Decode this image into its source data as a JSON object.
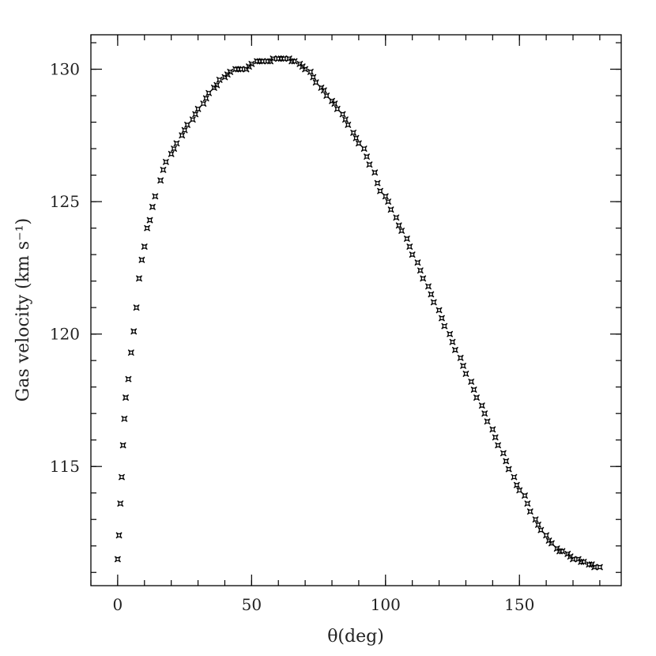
{
  "chart_data": {
    "type": "scatter",
    "title": "",
    "xlabel": "θ(deg)",
    "ylabel": "Gas velocity (km s⁻¹)",
    "xlim": [
      -10,
      188
    ],
    "ylim": [
      110.5,
      131.3
    ],
    "xticks": [
      0,
      50,
      100,
      150
    ],
    "yticks": [
      115,
      120,
      125,
      130
    ],
    "x_minor_step": 10,
    "y_minor_step": 1,
    "grid": false,
    "legend": "none",
    "marker": "star",
    "series": [
      {
        "x": [
          0,
          0.5,
          1,
          1.5,
          2,
          2.5,
          3,
          4,
          5,
          6,
          7,
          8,
          9,
          10,
          11,
          12,
          13,
          14,
          16,
          17,
          18,
          20,
          21,
          22,
          24,
          25,
          26,
          28,
          29,
          30,
          32,
          33,
          34,
          36,
          37,
          38,
          40,
          41,
          42,
          44,
          45,
          46,
          48,
          49,
          50,
          52,
          53,
          54,
          56,
          57,
          58,
          60,
          61,
          62,
          64,
          65,
          66,
          68,
          69,
          70,
          72,
          73,
          74,
          76,
          77,
          78,
          80,
          81,
          82,
          84,
          85,
          86,
          88,
          89,
          90,
          92,
          93,
          94,
          96,
          97,
          98,
          100,
          101,
          102,
          104,
          105,
          106,
          108,
          109,
          110,
          112,
          113,
          114,
          116,
          117,
          118,
          120,
          121,
          122,
          124,
          125,
          126,
          128,
          129,
          130,
          132,
          133,
          134,
          136,
          137,
          138,
          140,
          141,
          142,
          144,
          145,
          146,
          148,
          149,
          150,
          152,
          153,
          154,
          156,
          157,
          158,
          160,
          161,
          162,
          164,
          165,
          166,
          168,
          169,
          170,
          172,
          173,
          174,
          176,
          177,
          178,
          180
        ],
        "y": [
          111.5,
          112.4,
          113.6,
          114.6,
          115.8,
          116.8,
          117.6,
          118.3,
          119.3,
          120.1,
          121.0,
          122.1,
          122.8,
          123.3,
          124.0,
          124.3,
          124.8,
          125.2,
          125.8,
          126.2,
          126.5,
          126.8,
          127.0,
          127.2,
          127.5,
          127.7,
          127.9,
          128.1,
          128.3,
          128.5,
          128.7,
          128.9,
          129.1,
          129.3,
          129.4,
          129.6,
          129.7,
          129.8,
          129.9,
          130.0,
          130.0,
          130.0,
          130.0,
          130.1,
          130.2,
          130.3,
          130.3,
          130.3,
          130.3,
          130.3,
          130.4,
          130.4,
          130.4,
          130.4,
          130.4,
          130.3,
          130.3,
          130.2,
          130.1,
          130.0,
          129.9,
          129.7,
          129.5,
          129.3,
          129.2,
          129.0,
          128.8,
          128.7,
          128.5,
          128.3,
          128.1,
          127.9,
          127.6,
          127.4,
          127.2,
          127.0,
          126.7,
          126.4,
          126.1,
          125.7,
          125.4,
          125.2,
          125.0,
          124.7,
          124.4,
          124.1,
          123.9,
          123.6,
          123.3,
          123.0,
          122.7,
          122.4,
          122.1,
          121.8,
          121.5,
          121.2,
          120.9,
          120.6,
          120.3,
          120.0,
          119.7,
          119.4,
          119.1,
          118.8,
          118.5,
          118.2,
          117.9,
          117.6,
          117.3,
          117.0,
          116.7,
          116.4,
          116.1,
          115.8,
          115.5,
          115.2,
          114.9,
          114.6,
          114.3,
          114.1,
          113.9,
          113.6,
          113.3,
          113.0,
          112.8,
          112.6,
          112.4,
          112.2,
          112.1,
          111.9,
          111.8,
          111.8,
          111.7,
          111.6,
          111.5,
          111.5,
          111.4,
          111.4,
          111.3,
          111.3,
          111.2,
          111.2
        ]
      }
    ]
  }
}
